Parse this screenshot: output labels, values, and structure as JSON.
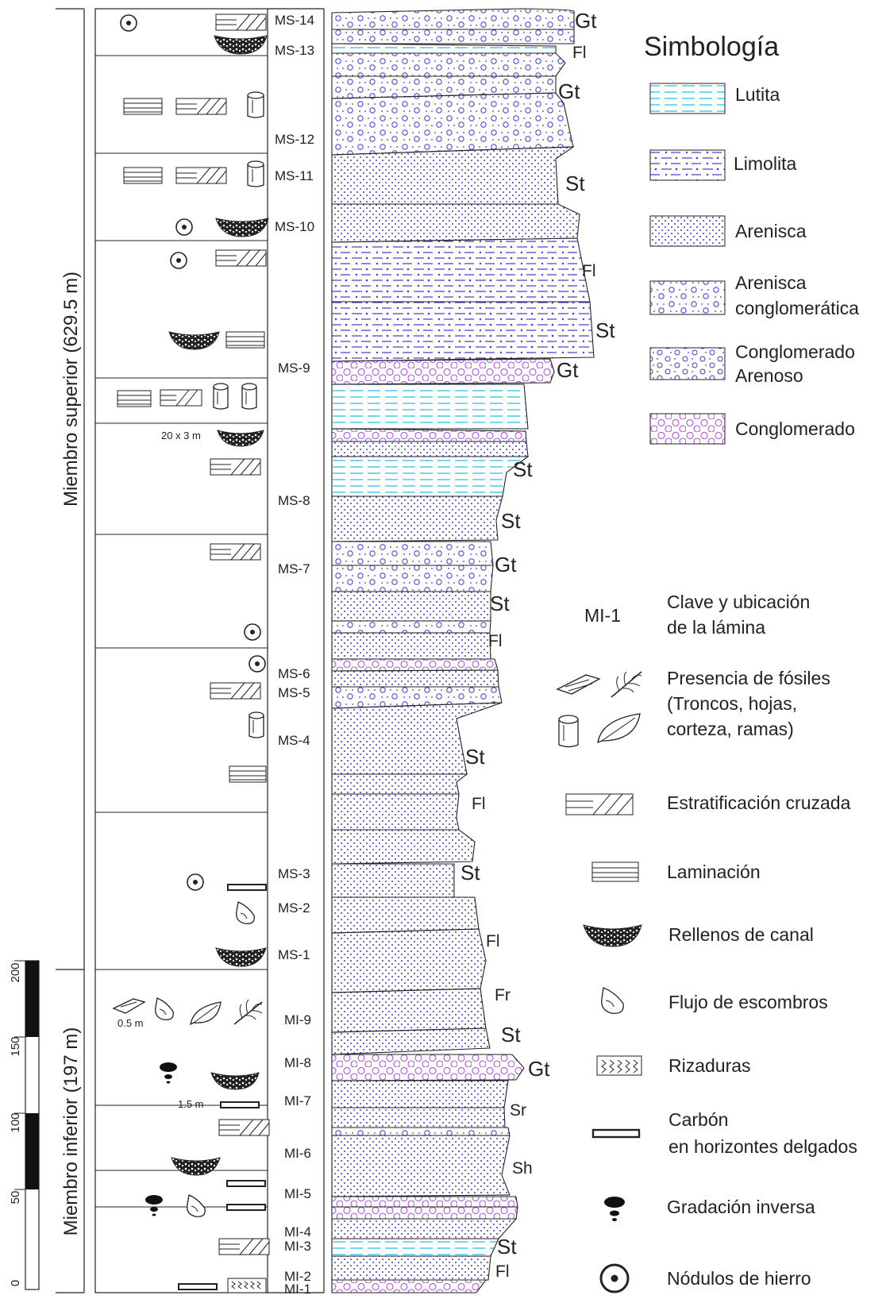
{
  "members": [
    {
      "label": "Miembro superior (629.5 m)"
    },
    {
      "label": "Miembro inferior (197 m)"
    }
  ],
  "scale": {
    "ticks": [
      "200",
      "150",
      "100",
      "50",
      "0"
    ]
  },
  "units": [
    {
      "label": "MS-14"
    },
    {
      "label": "MS-13"
    },
    {
      "label": "MS-12"
    },
    {
      "label": "MS-11"
    },
    {
      "label": "MS-10"
    },
    {
      "label": "MS-9"
    },
    {
      "label": "MS-8"
    },
    {
      "label": "MS-7"
    },
    {
      "label": "MS-6"
    },
    {
      "label": "MS-5"
    },
    {
      "label": "MS-4"
    },
    {
      "label": "MS-3"
    },
    {
      "label": "MS-2"
    },
    {
      "label": "MS-1"
    },
    {
      "label": "MI-9"
    },
    {
      "label": "MI-8"
    },
    {
      "label": "MI-7"
    },
    {
      "label": "MI-6"
    },
    {
      "label": "MI-5"
    },
    {
      "label": "MI-4"
    },
    {
      "label": "MI-3"
    },
    {
      "label": "MI-2"
    },
    {
      "label": "MI-1"
    }
  ],
  "facies": [
    {
      "code": "Gt"
    },
    {
      "code": "Fl"
    },
    {
      "code": "Gt"
    },
    {
      "code": "St"
    },
    {
      "code": "Fl"
    },
    {
      "code": "St"
    },
    {
      "code": "Gt"
    },
    {
      "code": "St"
    },
    {
      "code": "St"
    },
    {
      "code": "Gt"
    },
    {
      "code": "St"
    },
    {
      "code": "Fl"
    },
    {
      "code": "St"
    },
    {
      "code": "Fl"
    },
    {
      "code": "St"
    },
    {
      "code": "Fl"
    },
    {
      "code": "Fr"
    },
    {
      "code": "St"
    },
    {
      "code": "Gt"
    },
    {
      "code": "Sr"
    },
    {
      "code": "Sh"
    },
    {
      "code": "St"
    },
    {
      "code": "Fl"
    }
  ],
  "annotations": {
    "channel_size": "20 x 3 m",
    "fossil_size": "0.5 m",
    "carbon_size": "1.5 m"
  },
  "legend": {
    "title": "Simbología",
    "lithology": [
      {
        "label": "Lutita",
        "pattern": "lutita"
      },
      {
        "label": "Limolita",
        "pattern": "limolita"
      },
      {
        "label": "Arenisca",
        "pattern": "arenisca"
      },
      {
        "label": "Arenisca",
        "label2": "conglomerática",
        "pattern": "arenisca-cong"
      },
      {
        "label": "Conglomerado",
        "label2": "Arenoso",
        "pattern": "cong-arenoso"
      },
      {
        "label": "Conglomerado",
        "pattern": "conglomerado"
      }
    ],
    "symbols": [
      {
        "label": "Clave y ubicación",
        "label2": "de la lámina",
        "key": "MI-1"
      },
      {
        "label": "Presencia de fósiles",
        "label2": "(Troncos, hojas,",
        "label3": "corteza, ramas)"
      },
      {
        "label": "Estratificación cruzada"
      },
      {
        "label": "Laminación"
      },
      {
        "label": "Rellenos de canal"
      },
      {
        "label": "Flujo de escombros"
      },
      {
        "label": "Rizaduras"
      },
      {
        "label": "Carbón",
        "label2": "en horizontes delgados"
      },
      {
        "label": "Gradación inversa"
      },
      {
        "label": "Nódulos de hierro"
      }
    ]
  },
  "colors": {
    "line": "#222222",
    "sand_dot": "#3b3bd6",
    "shale": "#40c4e8",
    "conglomerate": "#b04fe0"
  }
}
